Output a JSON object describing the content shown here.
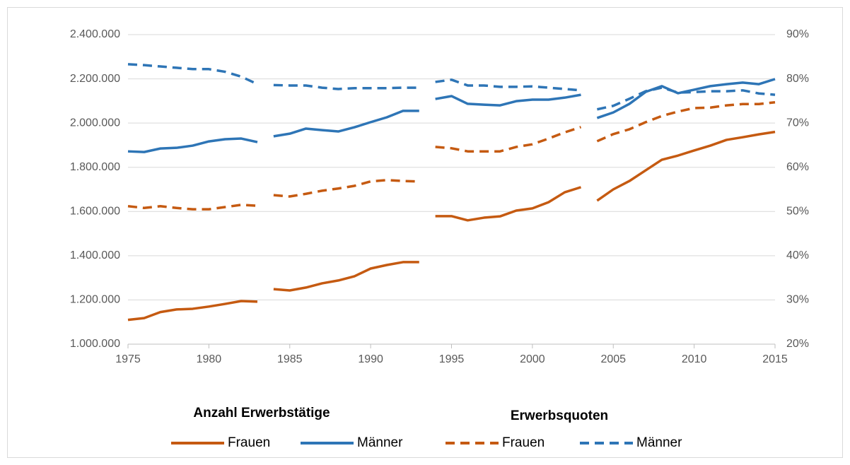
{
  "chart_data": {
    "type": "line",
    "legend_groups": [
      "Anzahl Erwerbstätige",
      "Erwerbsquoten"
    ],
    "x": [
      1975,
      1976,
      1977,
      1978,
      1979,
      1980,
      1981,
      1982,
      1983,
      null,
      1984,
      1985,
      1986,
      1987,
      1988,
      1989,
      1990,
      1991,
      1992,
      1993,
      null,
      1994,
      1995,
      1996,
      1997,
      1998,
      1999,
      2000,
      2001,
      2002,
      2003,
      null,
      2004,
      2005,
      2006,
      2007,
      2008,
      2009,
      2010,
      2011,
      2012,
      2013,
      2014,
      2015
    ],
    "xlim": [
      1975,
      2015
    ],
    "xticks": [
      1975,
      1980,
      1985,
      1990,
      1995,
      2000,
      2005,
      2010,
      2015
    ],
    "ylim": [
      1000000,
      2400000
    ],
    "yticks": [
      {
        "value": 1000000,
        "label": "1.000.000"
      },
      {
        "value": 1200000,
        "label": "1.200.000"
      },
      {
        "value": 1400000,
        "label": "1.400.000"
      },
      {
        "value": 1600000,
        "label": "1.600.000"
      },
      {
        "value": 1800000,
        "label": "1.800.000"
      },
      {
        "value": 2000000,
        "label": "2.000.000"
      },
      {
        "value": 2200000,
        "label": "2.200.000"
      },
      {
        "value": 2400000,
        "label": "2.400.000"
      }
    ],
    "y2lim": [
      20,
      90
    ],
    "y2ticks": [
      {
        "value": 20,
        "label": "20%"
      },
      {
        "value": 30,
        "label": "30%"
      },
      {
        "value": 40,
        "label": "40%"
      },
      {
        "value": 50,
        "label": "50%"
      },
      {
        "value": 60,
        "label": "60%"
      },
      {
        "value": 70,
        "label": "70%"
      },
      {
        "value": 80,
        "label": "80%"
      },
      {
        "value": 90,
        "label": "90%"
      }
    ],
    "series": [
      {
        "name": "Frauen",
        "color": "#c55a11",
        "dashed": false,
        "values": [
          1110000,
          1118000,
          1145000,
          1157000,
          1160000,
          1170000,
          1182000,
          1195000,
          1192000,
          null,
          1249000,
          1243000,
          1256000,
          1275000,
          1288000,
          1307000,
          1342000,
          1358000,
          1371000,
          1371000,
          null,
          1579000,
          1579000,
          1560000,
          1572000,
          1578000,
          1604000,
          1614000,
          1642000,
          1687000,
          1710000,
          null,
          1649000,
          1700000,
          1738000,
          1786000,
          1834000,
          1853000,
          1876000,
          1898000,
          1924000,
          1936000,
          1949000,
          1960000
        ]
      },
      {
        "name": "Männer",
        "color": "#2e75b6",
        "dashed": false,
        "values": [
          1872000,
          1869000,
          1885000,
          1888000,
          1898000,
          1917000,
          1927000,
          1930000,
          1914000,
          null,
          1940000,
          1952000,
          1975000,
          1968000,
          1962000,
          1981000,
          2004000,
          2026000,
          2055000,
          2055000,
          null,
          2109000,
          2122000,
          2087000,
          2083000,
          2080000,
          2099000,
          2106000,
          2106000,
          2115000,
          2128000,
          null,
          2023000,
          2048000,
          2087000,
          2141000,
          2167000,
          2135000,
          2151000,
          2167000,
          2176000,
          2183000,
          2176000,
          2199000
        ]
      },
      {
        "name": "Frauen",
        "color": "#c55a11",
        "dashed": true,
        "axis": "y2",
        "values": [
          51.2,
          50.8,
          51.2,
          50.8,
          50.5,
          50.5,
          51.0,
          51.5,
          51.3,
          null,
          53.7,
          53.4,
          54.0,
          54.7,
          55.2,
          55.8,
          56.8,
          57.1,
          56.9,
          56.8,
          null,
          64.6,
          64.3,
          63.6,
          63.6,
          63.6,
          64.6,
          65.2,
          66.5,
          67.9,
          69.1,
          null,
          65.9,
          67.5,
          68.6,
          70.2,
          71.6,
          72.6,
          73.4,
          73.5,
          74.0,
          74.3,
          74.3,
          74.7
        ]
      },
      {
        "name": "Männer",
        "color": "#2e75b6",
        "dashed": true,
        "axis": "y2",
        "values": [
          83.3,
          83.1,
          82.8,
          82.5,
          82.2,
          82.2,
          81.6,
          80.5,
          78.8,
          null,
          78.6,
          78.5,
          78.5,
          78.0,
          77.7,
          77.9,
          77.9,
          77.9,
          78.0,
          78.0,
          null,
          79.3,
          79.8,
          78.5,
          78.5,
          78.2,
          78.2,
          78.3,
          78.0,
          77.7,
          77.4,
          null,
          73.1,
          73.9,
          75.5,
          77.2,
          78.0,
          76.9,
          77.0,
          77.2,
          77.2,
          77.4,
          76.7,
          76.4
        ]
      }
    ]
  }
}
